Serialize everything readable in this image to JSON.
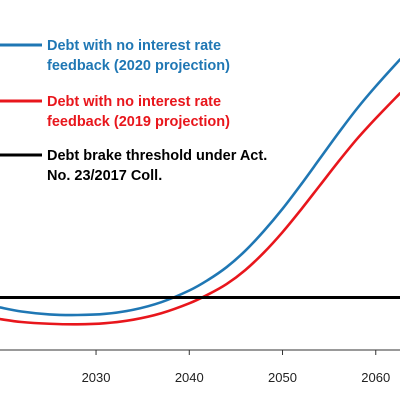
{
  "chart_data": {
    "type": "line",
    "title": "",
    "xlabel": "",
    "ylabel": "",
    "xlim": [
      2019.7,
      2062.6
    ],
    "ylim": [
      46,
      106
    ],
    "x_ticks": [
      2030,
      2040,
      2050,
      2060
    ],
    "x_tick_labels": [
      "2030",
      "2040",
      "2050",
      "2060"
    ],
    "grid": false,
    "legend_position": "top-left",
    "series": [
      {
        "name": "Debt with no interest rate feedback (2020 projection)",
        "color": "#1f77b4",
        "x": [
          2019.7,
          2022,
          2025,
          2028,
          2031,
          2034,
          2037,
          2040,
          2042,
          2044,
          2046,
          2048,
          2050,
          2052,
          2054,
          2056,
          2058,
          2060,
          2062.6
        ],
        "y": [
          53.3,
          52.6,
          52.1,
          52.0,
          52.2,
          52.9,
          54.2,
          56.2,
          58.0,
          60.2,
          63.0,
          66.4,
          70.2,
          74.4,
          78.8,
          83.2,
          87.4,
          91.2,
          95.8
        ]
      },
      {
        "name": "Debt with no interest rate feedback (2019 projection)",
        "color": "#e8161c",
        "x": [
          2019.7,
          2022,
          2025,
          2028,
          2031,
          2034,
          2037,
          2040,
          2042,
          2044,
          2046,
          2048,
          2050,
          2052,
          2054,
          2056,
          2058,
          2060,
          2062.6
        ],
        "y": [
          51.3,
          50.8,
          50.5,
          50.4,
          50.6,
          51.2,
          52.3,
          54.0,
          55.5,
          57.3,
          59.7,
          62.7,
          66.2,
          70.1,
          74.2,
          78.3,
          82.2,
          85.7,
          90.0
        ]
      },
      {
        "name": "Debt brake threshold under Act. No. 23/2017 Coll.",
        "color": "#000000",
        "x": [
          2019.7,
          2062.6
        ],
        "y": [
          55,
          55
        ]
      }
    ],
    "legend": [
      {
        "lines": [
          "Debt with no interest rate",
          "feedback (2020 projection)"
        ],
        "color": "#1f77b4"
      },
      {
        "lines": [
          "Debt with no interest rate",
          "feedback (2019 projection)"
        ],
        "color": "#e8161c"
      },
      {
        "lines": [
          "Debt brake threshold under Act.",
          "No. 23/2017 Coll."
        ],
        "color": "#000000"
      }
    ]
  }
}
